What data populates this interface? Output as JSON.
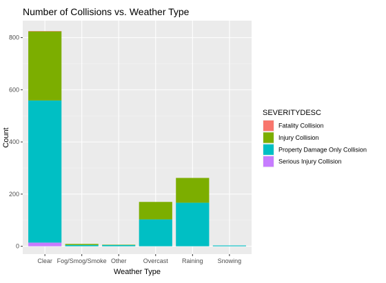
{
  "chart_data": {
    "type": "bar",
    "stacked": true,
    "title": "Number of Collisions vs. Weather Type",
    "xlabel": "Weather Type",
    "ylabel": "Count",
    "categories": [
      "Clear",
      "Fog/Smog/Smoke",
      "Other",
      "Overcast",
      "Raining",
      "Snowing"
    ],
    "ylim": [
      -30,
      865
    ],
    "yticks": [
      0,
      200,
      400,
      600,
      800
    ],
    "grid": true,
    "legend": {
      "title": "SEVERITYDESC",
      "position": "right"
    },
    "series": [
      {
        "name": "Fatality Collision",
        "color": "#F8766D",
        "values": [
          1,
          0,
          0,
          0,
          0,
          0
        ]
      },
      {
        "name": "Injury Collision",
        "color": "#7CAE00",
        "values": [
          265,
          4,
          1,
          67,
          95,
          0
        ]
      },
      {
        "name": "Property Damage Only Collision",
        "color": "#00BFC4",
        "values": [
          545,
          5,
          5,
          103,
          167,
          3
        ]
      },
      {
        "name": "Serious Injury Collision",
        "color": "#C77CFF",
        "values": [
          14,
          0,
          0,
          0,
          0,
          0
        ]
      }
    ]
  }
}
